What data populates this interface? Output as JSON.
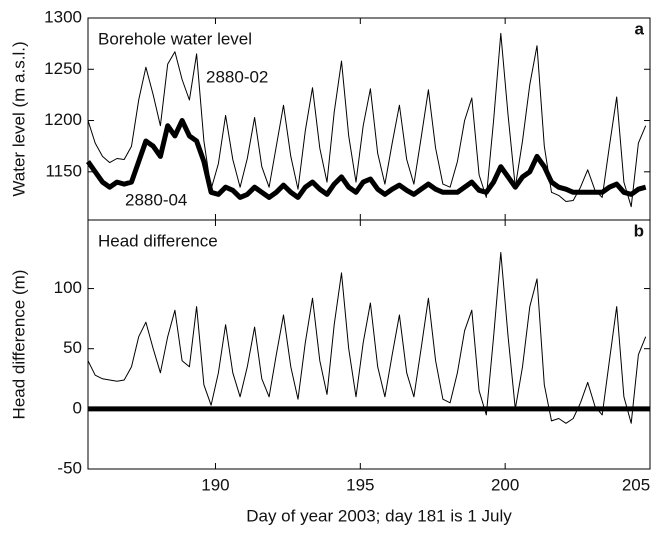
{
  "chart_data": [
    {
      "type": "line",
      "title": "Borehole water level",
      "panel_label": "a",
      "ylabel": "Water level (m a.s.l.)",
      "x": [
        185.6,
        185.85,
        186.1,
        186.35,
        186.6,
        186.85,
        187.1,
        187.35,
        187.6,
        187.85,
        188.1,
        188.35,
        188.6,
        188.85,
        189.1,
        189.35,
        189.6,
        189.85,
        190.1,
        190.35,
        190.6,
        190.85,
        191.1,
        191.35,
        191.6,
        191.85,
        192.1,
        192.35,
        192.6,
        192.85,
        193.1,
        193.35,
        193.6,
        193.85,
        194.1,
        194.35,
        194.6,
        194.85,
        195.1,
        195.35,
        195.6,
        195.85,
        196.1,
        196.35,
        196.6,
        196.85,
        197.1,
        197.35,
        197.6,
        197.85,
        198.1,
        198.35,
        198.6,
        198.85,
        199.1,
        199.35,
        199.6,
        199.85,
        200.1,
        200.35,
        200.6,
        200.85,
        201.1,
        201.35,
        201.6,
        201.85,
        202.1,
        202.35,
        202.6,
        202.85,
        203.1,
        203.35,
        203.6,
        203.85,
        204.1,
        204.35,
        204.6,
        204.85
      ],
      "xlim": [
        185.6,
        205
      ],
      "ylim": [
        1103,
        1300
      ],
      "yticks": [
        1150,
        1200,
        1250,
        1300
      ],
      "series": [
        {
          "name": "2880-02",
          "color": "#000000",
          "width": 1,
          "values": [
            1200,
            1178,
            1165,
            1159,
            1163,
            1162,
            1175,
            1220,
            1252,
            1225,
            1195,
            1255,
            1267,
            1240,
            1220,
            1265,
            1180,
            1133,
            1158,
            1205,
            1162,
            1135,
            1163,
            1203,
            1155,
            1135,
            1175,
            1215,
            1165,
            1133,
            1190,
            1232,
            1173,
            1140,
            1208,
            1258,
            1185,
            1140,
            1195,
            1231,
            1168,
            1138,
            1178,
            1215,
            1162,
            1138,
            1183,
            1230,
            1173,
            1138,
            1135,
            1160,
            1200,
            1222,
            1147,
            1125,
            1200,
            1285,
            1205,
            1135,
            1180,
            1235,
            1273,
            1175,
            1130,
            1127,
            1121,
            1122,
            1135,
            1152,
            1132,
            1125,
            1175,
            1223,
            1140,
            1116,
            1178,
            1195
          ]
        },
        {
          "name": "2880-04",
          "color": "#000000",
          "width": 5,
          "values": [
            1160,
            1150,
            1140,
            1135,
            1140,
            1138,
            1140,
            1160,
            1180,
            1175,
            1165,
            1195,
            1185,
            1200,
            1185,
            1180,
            1160,
            1130,
            1128,
            1135,
            1132,
            1125,
            1128,
            1135,
            1130,
            1125,
            1130,
            1137,
            1130,
            1125,
            1135,
            1140,
            1133,
            1128,
            1138,
            1145,
            1135,
            1130,
            1140,
            1143,
            1133,
            1128,
            1133,
            1137,
            1132,
            1128,
            1133,
            1138,
            1133,
            1130,
            1130,
            1130,
            1135,
            1140,
            1132,
            1130,
            1140,
            1155,
            1145,
            1135,
            1145,
            1150,
            1165,
            1155,
            1140,
            1135,
            1133,
            1130,
            1130,
            1130,
            1130,
            1130,
            1135,
            1138,
            1130,
            1128,
            1133,
            1135
          ]
        }
      ]
    },
    {
      "type": "line",
      "title": "Head difference",
      "panel_label": "b",
      "ylabel": "Head difference (m)",
      "xlabel": "Day of year 2003; day 181 is 1 July",
      "x": [
        185.6,
        185.85,
        186.1,
        186.35,
        186.6,
        186.85,
        187.1,
        187.35,
        187.6,
        187.85,
        188.1,
        188.35,
        188.6,
        188.85,
        189.1,
        189.35,
        189.6,
        189.85,
        190.1,
        190.35,
        190.6,
        190.85,
        191.1,
        191.35,
        191.6,
        191.85,
        192.1,
        192.35,
        192.6,
        192.85,
        193.1,
        193.35,
        193.6,
        193.85,
        194.1,
        194.35,
        194.6,
        194.85,
        195.1,
        195.35,
        195.6,
        195.85,
        196.1,
        196.35,
        196.6,
        196.85,
        197.1,
        197.35,
        197.6,
        197.85,
        198.1,
        198.35,
        198.6,
        198.85,
        199.1,
        199.35,
        199.6,
        199.85,
        200.1,
        200.35,
        200.6,
        200.85,
        201.1,
        201.35,
        201.6,
        201.85,
        202.1,
        202.35,
        202.6,
        202.85,
        203.1,
        203.35,
        203.6,
        203.85,
        204.1,
        204.35,
        204.6,
        204.85
      ],
      "xlim": [
        185.6,
        205
      ],
      "xticks": [
        190,
        195,
        200,
        205
      ],
      "ylim": [
        -50,
        157
      ],
      "yticks": [
        -50,
        0,
        50,
        100
      ],
      "hline": 0,
      "hline_color": "#000000",
      "color": "#000000",
      "values": [
        40,
        28,
        25,
        24,
        23,
        24,
        35,
        60,
        72,
        50,
        30,
        60,
        82,
        40,
        35,
        85,
        20,
        3,
        30,
        70,
        30,
        10,
        35,
        68,
        25,
        10,
        45,
        78,
        35,
        8,
        55,
        92,
        40,
        12,
        70,
        113,
        50,
        10,
        55,
        88,
        35,
        10,
        45,
        78,
        30,
        10,
        50,
        92,
        40,
        8,
        5,
        30,
        65,
        82,
        15,
        -5,
        60,
        130,
        60,
        0,
        35,
        85,
        108,
        20,
        -10,
        -8,
        -12,
        -8,
        5,
        22,
        2,
        -5,
        40,
        85,
        10,
        -12,
        45,
        60
      ]
    }
  ]
}
